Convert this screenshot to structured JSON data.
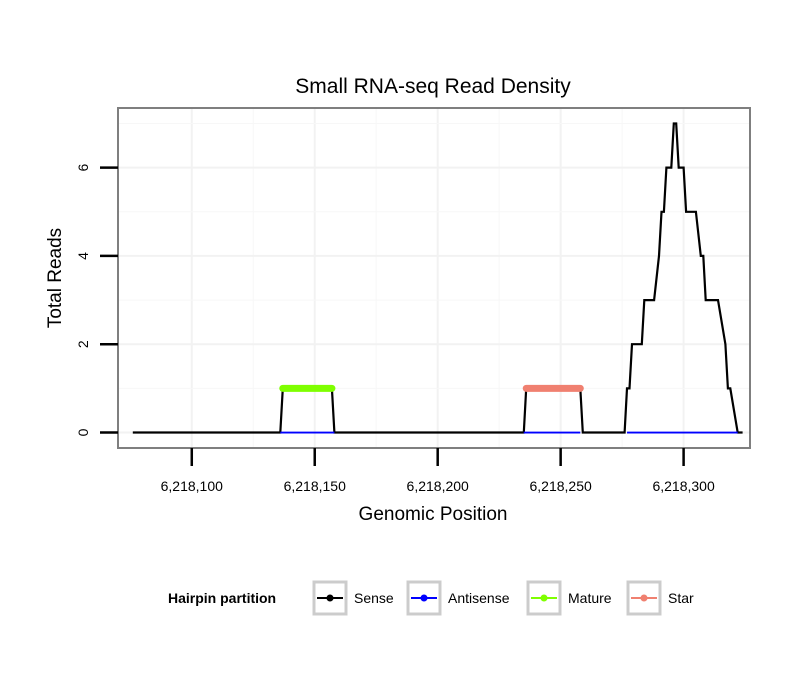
{
  "chart_data": {
    "type": "line",
    "title": "Small RNA-seq Read Density",
    "xlabel": "Genomic Position",
    "ylabel": "Total Reads",
    "xlim": [
      6218070,
      6218327
    ],
    "ylim": [
      -0.35,
      7.35
    ],
    "x_ticks": [
      6218100,
      6218150,
      6218200,
      6218250,
      6218300
    ],
    "x_tick_labels": [
      "6,218,100",
      "6,218,150",
      "6,218,200",
      "6,218,250",
      "6,218,300"
    ],
    "y_ticks": [
      0,
      2,
      4,
      6
    ],
    "y_tick_labels": [
      "0",
      "2",
      "4",
      "6"
    ],
    "grid": true,
    "legend_position": "bottom",
    "legend_title": "Hairpin partition",
    "series": [
      {
        "name": "Sense",
        "color": "#000000",
        "x": [
          6218076,
          6218136,
          6218137,
          6218157,
          6218158,
          6218235,
          6218236,
          6218258,
          6218259,
          6218276,
          6218277,
          6218278,
          6218279,
          6218280,
          6218281,
          6218283,
          6218284,
          6218287,
          6218288,
          6218290,
          6218291,
          6218292,
          6218293,
          6218294,
          6218295,
          6218296,
          6218297,
          6218298,
          6218299,
          6218300,
          6218301,
          6218304,
          6218305,
          6218307,
          6218308,
          6218309,
          6218310,
          6218313,
          6218314,
          6218317,
          6218318,
          6218319,
          6218322,
          6218324
        ],
        "values": [
          0,
          0,
          1,
          1,
          0,
          0,
          1,
          1,
          0,
          0,
          1,
          1,
          2,
          2,
          2,
          2,
          3,
          3,
          3,
          4,
          5,
          5,
          6,
          6,
          6,
          7,
          7,
          6,
          6,
          6,
          5,
          5,
          5,
          4,
          4,
          3,
          3,
          3,
          3,
          2,
          1,
          1,
          0,
          0
        ]
      },
      {
        "name": "Antisense",
        "color": "#0000ff",
        "x": [
          6218136,
          6218158,
          6218235,
          6218258,
          6218277,
          6218322
        ],
        "values": [
          0,
          0,
          0,
          0,
          0,
          0
        ]
      },
      {
        "name": "Mature",
        "color": "#7fff00",
        "x": [
          6218137,
          6218157
        ],
        "values": [
          1,
          1
        ]
      },
      {
        "name": "Star",
        "color": "#f08070",
        "x": [
          6218236,
          6218258
        ],
        "values": [
          1,
          1
        ]
      }
    ]
  }
}
